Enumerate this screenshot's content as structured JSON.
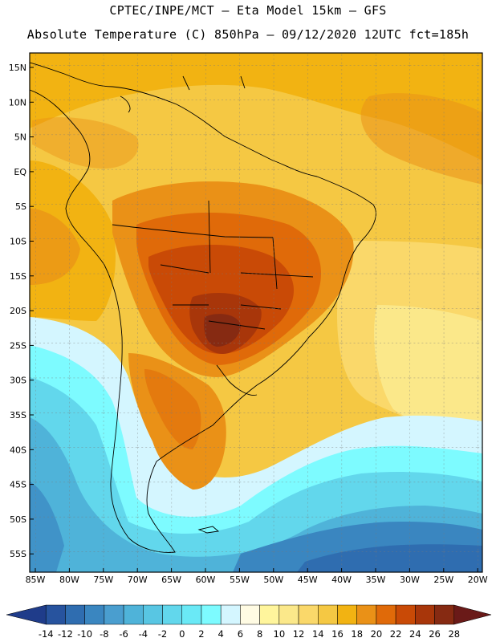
{
  "header": {
    "line1": "CPTEC/INPE/MCT –  Eta Model 15km – GFS",
    "line2": "Absolute Temperature (C) 850hPa – 09/12/2020 12UTC fct=185h"
  },
  "map": {
    "lat_labels": [
      "15N",
      "10N",
      "5N",
      "EQ",
      "5S",
      "10S",
      "15S",
      "20S",
      "25S",
      "30S",
      "35S",
      "40S",
      "45S",
      "50S",
      "55S"
    ],
    "lon_labels": [
      "85W",
      "80W",
      "75W",
      "70W",
      "65W",
      "60W",
      "55W",
      "50W",
      "45W",
      "40W",
      "35W",
      "30W",
      "25W",
      "20W"
    ]
  },
  "colorbar": {
    "labels": [
      "-14",
      "-12",
      "-10",
      "-8",
      "-6",
      "-4",
      "-2",
      "0",
      "2",
      "4",
      "6",
      "8",
      "10",
      "12",
      "14",
      "16",
      "18",
      "20",
      "22",
      "24",
      "26",
      "28"
    ],
    "colors": [
      "#1f3c8a",
      "#27539e",
      "#2f6db0",
      "#3a86c0",
      "#4a9ecf",
      "#4fb3d9",
      "#58c6e3",
      "#62d7ec",
      "#6ae9f6",
      "#7dfbff",
      "#d4f6ff",
      "#fffbe3",
      "#fff59c",
      "#fbe88a",
      "#fad86a",
      "#f5c843",
      "#f2b312",
      "#ea9117",
      "#e06a09",
      "#c94a06",
      "#a8360a",
      "#862a12",
      "#6a1a18"
    ]
  }
}
